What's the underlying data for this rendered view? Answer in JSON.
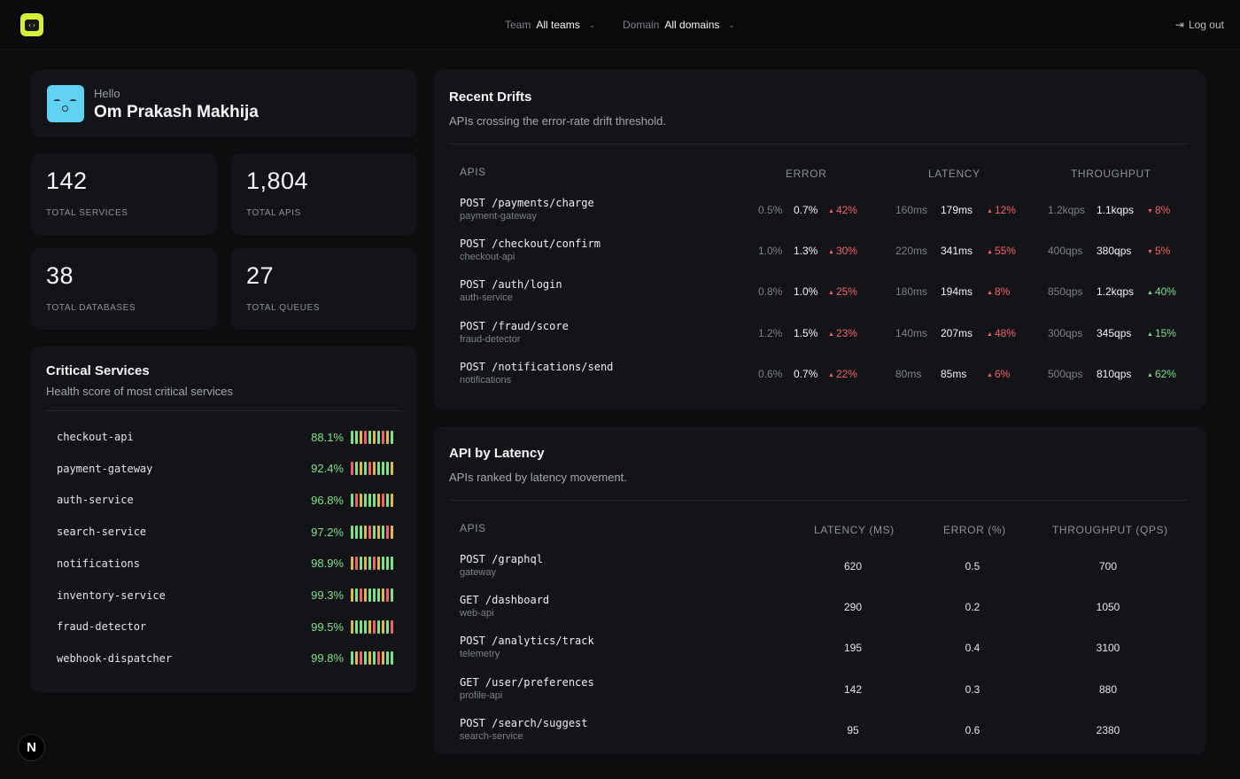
{
  "topbar": {
    "team_label": "Team",
    "team_value": "All teams",
    "domain_label": "Domain",
    "domain_value": "All domains",
    "logout_label": "Log out"
  },
  "greeting": {
    "hello": "Hello",
    "name": "Om Prakash Makhija"
  },
  "stats": [
    {
      "value": "142",
      "label": "TOTAL SERVICES"
    },
    {
      "value": "1,804",
      "label": "TOTAL APIS"
    },
    {
      "value": "38",
      "label": "TOTAL DATABASES"
    },
    {
      "value": "27",
      "label": "TOTAL QUEUES"
    }
  ],
  "critical": {
    "title": "Critical Services",
    "subtitle": "Health score of most critical services",
    "services": [
      {
        "name": "checkout-api",
        "score": "88.1%"
      },
      {
        "name": "payment-gateway",
        "score": "92.4%"
      },
      {
        "name": "auth-service",
        "score": "96.8%"
      },
      {
        "name": "search-service",
        "score": "97.2%"
      },
      {
        "name": "notifications",
        "score": "98.9%"
      },
      {
        "name": "inventory-service",
        "score": "99.3%"
      },
      {
        "name": "fraud-detector",
        "score": "99.5%"
      },
      {
        "name": "webhook-dispatcher",
        "score": "99.8%"
      }
    ]
  },
  "drifts": {
    "title": "Recent Drifts",
    "subtitle": "APIs crossing the error-rate drift threshold.",
    "headers": {
      "apis": "APIS",
      "error": "ERROR",
      "latency": "LATENCY",
      "throughput": "THROUGHPUT"
    },
    "rows": [
      {
        "api": "POST /payments/charge",
        "service": "payment-gateway",
        "err_old": "0.5%",
        "err_new": "0.7%",
        "err_delta": "42%",
        "lat_old": "160ms",
        "lat_new": "179ms",
        "lat_delta": "12%",
        "tp_old": "1.2kqps",
        "tp_new": "1.1kqps",
        "tp_delta": "8%",
        "tp_dir": "down"
      },
      {
        "api": "POST /checkout/confirm",
        "service": "checkout-api",
        "err_old": "1.0%",
        "err_new": "1.3%",
        "err_delta": "30%",
        "lat_old": "220ms",
        "lat_new": "341ms",
        "lat_delta": "55%",
        "tp_old": "400qps",
        "tp_new": "380qps",
        "tp_delta": "5%",
        "tp_dir": "down"
      },
      {
        "api": "POST /auth/login",
        "service": "auth-service",
        "err_old": "0.8%",
        "err_new": "1.0%",
        "err_delta": "25%",
        "lat_old": "180ms",
        "lat_new": "194ms",
        "lat_delta": "8%",
        "tp_old": "850qps",
        "tp_new": "1.2kqps",
        "tp_delta": "40%",
        "tp_dir": "up"
      },
      {
        "api": "POST /fraud/score",
        "service": "fraud-detector",
        "err_old": "1.2%",
        "err_new": "1.5%",
        "err_delta": "23%",
        "lat_old": "140ms",
        "lat_new": "207ms",
        "lat_delta": "48%",
        "tp_old": "300qps",
        "tp_new": "345qps",
        "tp_delta": "15%",
        "tp_dir": "up"
      },
      {
        "api": "POST /notifications/send",
        "service": "notifications",
        "err_old": "0.6%",
        "err_new": "0.7%",
        "err_delta": "22%",
        "lat_old": "80ms",
        "lat_new": "85ms",
        "lat_delta": "6%",
        "tp_old": "500qps",
        "tp_new": "810qps",
        "tp_delta": "62%",
        "tp_dir": "up"
      }
    ]
  },
  "latency": {
    "title": "API by Latency",
    "subtitle": "APIs ranked by latency movement.",
    "headers": {
      "apis": "APIS",
      "latency": "LATENCY (MS)",
      "error": "ERROR (%)",
      "throughput": "THROUGHPUT (QPS)"
    },
    "rows": [
      {
        "api": "POST /graphql",
        "service": "gateway",
        "latency": "620",
        "error": "0.5",
        "throughput": "700"
      },
      {
        "api": "GET /dashboard",
        "service": "web-api",
        "latency": "290",
        "error": "0.2",
        "throughput": "1050"
      },
      {
        "api": "POST /analytics/track",
        "service": "telemetry",
        "latency": "195",
        "error": "0.4",
        "throughput": "3100"
      },
      {
        "api": "GET /user/preferences",
        "service": "profile-api",
        "latency": "142",
        "error": "0.3",
        "throughput": "880"
      },
      {
        "api": "POST /search/suggest",
        "service": "search-service",
        "latency": "95",
        "error": "0.6",
        "throughput": "2380"
      }
    ]
  },
  "badge": {
    "letter": "N"
  },
  "colors": {
    "accent": "#d6f03a",
    "good": "#7fe08a",
    "bad": "#f2616b",
    "warn": "#e0b84a",
    "avatar": "#5fd2f2"
  }
}
